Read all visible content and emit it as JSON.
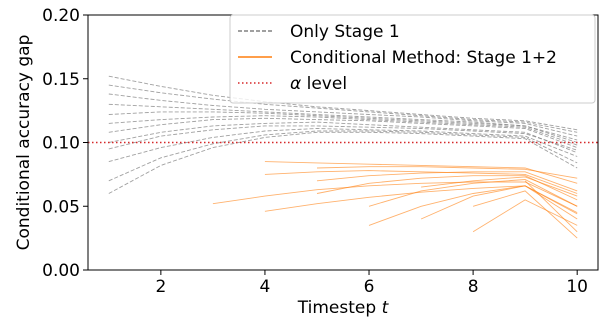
{
  "chart_data": {
    "type": "line",
    "xlabel": "Timestep",
    "xlabel_var": "t",
    "ylabel": "Conditional accuracy gap",
    "xlim": [
      0.6,
      10.4
    ],
    "ylim": [
      0.0,
      0.2
    ],
    "xticks": [
      2,
      4,
      6,
      8,
      10
    ],
    "yticks": [
      0.0,
      0.05,
      0.1,
      0.15,
      0.2
    ],
    "ytick_labels": [
      "0.00",
      "0.05",
      "0.10",
      "0.15",
      "0.20"
    ],
    "xtick_labels": [
      "2",
      "4",
      "6",
      "8",
      "10"
    ],
    "grid": false,
    "legend_position": "top-right",
    "legend": [
      {
        "label": "Only Stage 1",
        "color": "#808080",
        "style": "dashed"
      },
      {
        "label": "Conditional Method: Stage 1+2",
        "color": "#ff7f0e",
        "style": "solid"
      },
      {
        "label_prefix": "α",
        "label": " level",
        "color": "#d62728",
        "style": "dotted"
      }
    ],
    "alpha_level": 0.1,
    "series": [
      {
        "group": "Only Stage 1",
        "x": [
          1,
          2,
          3,
          4,
          5,
          6,
          7,
          8,
          9,
          10
        ],
        "y": [
          0.115,
          0.118,
          0.12,
          0.121,
          0.12,
          0.118,
          0.116,
          0.114,
          0.112,
          0.098
        ],
        "color": "#808080"
      },
      {
        "group": "Only Stage 1",
        "x": [
          1,
          2,
          3,
          4,
          5,
          6,
          7,
          8,
          9,
          10
        ],
        "y": [
          0.1,
          0.108,
          0.113,
          0.115,
          0.116,
          0.114,
          0.112,
          0.11,
          0.108,
          0.092
        ],
        "color": "#808080"
      },
      {
        "group": "Only Stage 1",
        "x": [
          1,
          2,
          3,
          4,
          5,
          6,
          7,
          8,
          9,
          10
        ],
        "y": [
          0.13,
          0.128,
          0.126,
          0.124,
          0.122,
          0.12,
          0.118,
          0.116,
          0.113,
          0.102
        ],
        "color": "#808080"
      },
      {
        "group": "Only Stage 1",
        "x": [
          1,
          2,
          3,
          4,
          5,
          6,
          7,
          8,
          9,
          10
        ],
        "y": [
          0.085,
          0.096,
          0.104,
          0.109,
          0.111,
          0.11,
          0.109,
          0.107,
          0.105,
          0.089
        ],
        "color": "#808080"
      },
      {
        "group": "Only Stage 1",
        "x": [
          1,
          2,
          3,
          4,
          5,
          6,
          7,
          8,
          9,
          10
        ],
        "y": [
          0.145,
          0.139,
          0.134,
          0.13,
          0.127,
          0.124,
          0.121,
          0.118,
          0.116,
          0.108
        ],
        "color": "#808080"
      },
      {
        "group": "Only Stage 1",
        "x": [
          1,
          2,
          3,
          4,
          5,
          6,
          7,
          8,
          9,
          10
        ],
        "y": [
          0.07,
          0.088,
          0.099,
          0.106,
          0.109,
          0.109,
          0.108,
          0.106,
          0.104,
          0.084
        ],
        "color": "#808080"
      },
      {
        "group": "Only Stage 1",
        "x": [
          1,
          2,
          3,
          4,
          5,
          6,
          7,
          8,
          9,
          10
        ],
        "y": [
          0.122,
          0.124,
          0.124,
          0.123,
          0.121,
          0.119,
          0.117,
          0.115,
          0.113,
          0.1
        ],
        "color": "#808080"
      },
      {
        "group": "Only Stage 1",
        "x": [
          1,
          2,
          3,
          4,
          5,
          6,
          7,
          8,
          9,
          10
        ],
        "y": [
          0.095,
          0.105,
          0.11,
          0.113,
          0.113,
          0.112,
          0.111,
          0.109,
          0.107,
          0.094
        ],
        "color": "#808080"
      },
      {
        "group": "Only Stage 1",
        "x": [
          1,
          2,
          3,
          4,
          5,
          6,
          7,
          8,
          9,
          10
        ],
        "y": [
          0.138,
          0.133,
          0.129,
          0.126,
          0.124,
          0.122,
          0.12,
          0.117,
          0.115,
          0.105
        ],
        "color": "#808080"
      },
      {
        "group": "Only Stage 1",
        "x": [
          1,
          2,
          3,
          4,
          5,
          6,
          7,
          8,
          9,
          10
        ],
        "y": [
          0.06,
          0.082,
          0.096,
          0.104,
          0.108,
          0.108,
          0.107,
          0.105,
          0.103,
          0.08
        ],
        "color": "#808080"
      },
      {
        "group": "Only Stage 1",
        "x": [
          1,
          2,
          3,
          4,
          5,
          6,
          7,
          8,
          9,
          10
        ],
        "y": [
          0.108,
          0.114,
          0.118,
          0.119,
          0.118,
          0.117,
          0.115,
          0.113,
          0.111,
          0.096
        ],
        "color": "#808080"
      },
      {
        "group": "Only Stage 1",
        "x": [
          1,
          2,
          3,
          4,
          5,
          6,
          7,
          8,
          9,
          10
        ],
        "y": [
          0.152,
          0.144,
          0.137,
          0.132,
          0.128,
          0.125,
          0.122,
          0.119,
          0.117,
          0.11
        ],
        "color": "#808080"
      },
      {
        "group": "Conditional Method: Stage 1+2",
        "x": [
          4,
          5,
          6,
          7,
          8,
          9,
          10
        ],
        "y": [
          0.075,
          0.077,
          0.078,
          0.077,
          0.076,
          0.075,
          0.06
        ],
        "color": "#ff7f0e"
      },
      {
        "group": "Conditional Method: Stage 1+2",
        "x": [
          5,
          6,
          7,
          8,
          9,
          10
        ],
        "y": [
          0.06,
          0.068,
          0.072,
          0.074,
          0.074,
          0.055
        ],
        "color": "#ff7f0e"
      },
      {
        "group": "Conditional Method: Stage 1+2",
        "x": [
          6,
          7,
          8,
          9,
          10
        ],
        "y": [
          0.05,
          0.062,
          0.068,
          0.071,
          0.05
        ],
        "color": "#ff7f0e"
      },
      {
        "group": "Conditional Method: Stage 1+2",
        "x": [
          7,
          8,
          9,
          10
        ],
        "y": [
          0.04,
          0.058,
          0.066,
          0.045
        ],
        "color": "#ff7f0e"
      },
      {
        "group": "Conditional Method: Stage 1+2",
        "x": [
          4,
          5,
          6,
          7,
          8,
          9,
          10
        ],
        "y": [
          0.085,
          0.084,
          0.083,
          0.082,
          0.081,
          0.08,
          0.068
        ],
        "color": "#ff7f0e"
      },
      {
        "group": "Conditional Method: Stage 1+2",
        "x": [
          8,
          9,
          10
        ],
        "y": [
          0.03,
          0.055,
          0.035
        ],
        "color": "#ff7f0e"
      },
      {
        "group": "Conditional Method: Stage 1+2",
        "x": [
          3,
          4,
          5,
          6,
          7,
          8,
          9,
          10
        ],
        "y": [
          0.052,
          0.058,
          0.063,
          0.066,
          0.068,
          0.069,
          0.069,
          0.05
        ],
        "color": "#ff7f0e"
      },
      {
        "group": "Conditional Method: Stage 1+2",
        "x": [
          5,
          6,
          7,
          8,
          9,
          10
        ],
        "y": [
          0.07,
          0.074,
          0.076,
          0.077,
          0.077,
          0.062
        ],
        "color": "#ff7f0e"
      },
      {
        "group": "Conditional Method: Stage 1+2",
        "x": [
          6,
          7,
          8,
          9,
          10
        ],
        "y": [
          0.035,
          0.05,
          0.06,
          0.066,
          0.04
        ],
        "color": "#ff7f0e"
      },
      {
        "group": "Conditional Method: Stage 1+2",
        "x": [
          7,
          8,
          9,
          10
        ],
        "y": [
          0.065,
          0.07,
          0.073,
          0.058
        ],
        "color": "#ff7f0e"
      },
      {
        "group": "Conditional Method: Stage 1+2",
        "x": [
          8,
          9,
          10
        ],
        "y": [
          0.05,
          0.062,
          0.025
        ],
        "color": "#ff7f0e"
      },
      {
        "group": "Conditional Method: Stage 1+2",
        "x": [
          4,
          5,
          6,
          7,
          8,
          9,
          10
        ],
        "y": [
          0.046,
          0.052,
          0.057,
          0.061,
          0.064,
          0.066,
          0.044
        ],
        "color": "#ff7f0e"
      },
      {
        "group": "Conditional Method: Stage 1+2",
        "x": [
          5,
          6,
          7,
          8,
          9,
          10
        ],
        "y": [
          0.08,
          0.081,
          0.081,
          0.08,
          0.079,
          0.072
        ],
        "color": "#ff7f0e"
      },
      {
        "group": "Conditional Method: Stage 1+2",
        "x": [
          9,
          10
        ],
        "y": [
          0.07,
          0.03
        ],
        "color": "#ff7f0e"
      }
    ]
  }
}
